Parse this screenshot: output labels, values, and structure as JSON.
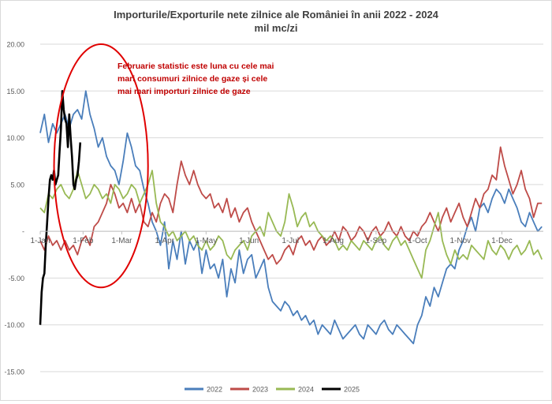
{
  "chart_data": {
    "type": "line",
    "title": "Importurile/Exporturile nete zilnice ale României în anii 2022 - 2024",
    "subtitle": "mil mc/zi",
    "ylim": [
      -15,
      20
    ],
    "y_ticks": [
      {
        "value": 20,
        "label": "20.00"
      },
      {
        "value": 15,
        "label": "15.00"
      },
      {
        "value": 10,
        "label": "10.00"
      },
      {
        "value": 5,
        "label": "5.00"
      },
      {
        "value": 0,
        "label": "-"
      },
      {
        "value": -5,
        "label": "-5.00"
      },
      {
        "value": -10,
        "label": "-10.00"
      },
      {
        "value": -15,
        "label": "-15.00"
      }
    ],
    "xlim": [
      1,
      365
    ],
    "x_ticks": [
      {
        "day": 1,
        "label": "1-Jan"
      },
      {
        "day": 32,
        "label": "1-Feb"
      },
      {
        "day": 60,
        "label": "1-Mar"
      },
      {
        "day": 91,
        "label": "1-Apr"
      },
      {
        "day": 121,
        "label": "1-May"
      },
      {
        "day": 152,
        "label": "1-Jun"
      },
      {
        "day": 182,
        "label": "1-Jul"
      },
      {
        "day": 213,
        "label": "1-Aug"
      },
      {
        "day": 244,
        "label": "1-Sep"
      },
      {
        "day": 274,
        "label": "1-Oct"
      },
      {
        "day": 305,
        "label": "1-Nov"
      },
      {
        "day": 335,
        "label": "1-Dec"
      }
    ],
    "grid": true,
    "legend_position": "bottom",
    "annotation": "Februarie statistic este luna cu cele mai mari consumuri zilnice de gaze și cele mai mari importuri zilnice de gaze",
    "annotation_lines": [
      "Februarie statistic este luna cu cele mai",
      "mari consumuri zilnice de gaze și cele",
      "mai mari importuri zilnice de gaze"
    ],
    "highlight_ellipse": {
      "day_center": 45,
      "value_center": 7,
      "day_radius": 34,
      "value_radius": 13
    },
    "series": [
      {
        "name": "2022",
        "color": "#4a7ebb",
        "x": [
          1,
          4,
          7,
          10,
          13,
          16,
          19,
          22,
          25,
          28,
          31,
          34,
          37,
          40,
          43,
          46,
          49,
          52,
          55,
          58,
          61,
          64,
          67,
          70,
          73,
          76,
          79,
          82,
          85,
          88,
          91,
          94,
          97,
          100,
          103,
          106,
          109,
          112,
          115,
          118,
          121,
          124,
          127,
          130,
          133,
          136,
          139,
          142,
          145,
          148,
          151,
          154,
          157,
          160,
          163,
          166,
          169,
          172,
          175,
          178,
          181,
          184,
          187,
          190,
          193,
          196,
          199,
          202,
          205,
          208,
          211,
          214,
          217,
          220,
          223,
          226,
          229,
          232,
          235,
          238,
          241,
          244,
          247,
          250,
          253,
          256,
          259,
          262,
          265,
          268,
          271,
          274,
          277,
          280,
          283,
          286,
          289,
          292,
          295,
          298,
          301,
          304,
          307,
          310,
          313,
          316,
          319,
          322,
          325,
          328,
          331,
          334,
          337,
          340,
          343,
          346,
          349,
          352,
          355,
          358,
          361,
          364
        ],
        "y": [
          10.5,
          12.5,
          9.5,
          11.5,
          10.5,
          11.5,
          12.5,
          11.0,
          12.5,
          13.0,
          12.0,
          15.0,
          12.5,
          11.0,
          9.0,
          10.0,
          8.0,
          7.0,
          6.5,
          5.0,
          7.5,
          10.5,
          9.0,
          7.0,
          6.5,
          4.5,
          3.0,
          1.0,
          0.0,
          -1.5,
          1.0,
          -4.0,
          -1.0,
          -3.0,
          0.0,
          -3.5,
          -1.0,
          -2.0,
          -1.0,
          -4.5,
          -2.0,
          -4.0,
          -3.5,
          -5.0,
          -3.0,
          -7.0,
          -4.0,
          -5.5,
          -2.0,
          -4.5,
          -3.0,
          -2.5,
          -5.0,
          -4.0,
          -3.0,
          -6.0,
          -7.5,
          -8.0,
          -8.5,
          -7.5,
          -8.0,
          -9.0,
          -8.5,
          -9.5,
          -9.0,
          -10.0,
          -9.5,
          -11.0,
          -10.0,
          -10.5,
          -11.0,
          -9.5,
          -10.5,
          -11.5,
          -11.0,
          -10.5,
          -10.0,
          -11.0,
          -11.5,
          -10.0,
          -10.5,
          -11.0,
          -10.0,
          -9.5,
          -10.5,
          -11.0,
          -10.0,
          -10.5,
          -11.0,
          -11.5,
          -12.0,
          -10.0,
          -9.0,
          -7.0,
          -8.0,
          -6.0,
          -7.0,
          -5.5,
          -4.0,
          -3.5,
          -4.0,
          -2.0,
          -1.0,
          0.5,
          1.5,
          0.0,
          2.5,
          3.0,
          2.0,
          3.5,
          4.5,
          4.0,
          3.0,
          4.5,
          3.5,
          2.5,
          1.0,
          0.5,
          2.0,
          1.0,
          0.0,
          0.5
        ]
      },
      {
        "name": "2023",
        "color": "#be4b48",
        "x": [
          1,
          4,
          7,
          10,
          13,
          16,
          19,
          22,
          25,
          28,
          31,
          34,
          37,
          40,
          43,
          46,
          49,
          52,
          55,
          58,
          61,
          64,
          67,
          70,
          73,
          76,
          79,
          82,
          85,
          88,
          91,
          94,
          97,
          100,
          103,
          106,
          109,
          112,
          115,
          118,
          121,
          124,
          127,
          130,
          133,
          136,
          139,
          142,
          145,
          148,
          151,
          154,
          157,
          160,
          163,
          166,
          169,
          172,
          175,
          178,
          181,
          184,
          187,
          190,
          193,
          196,
          199,
          202,
          205,
          208,
          211,
          214,
          217,
          220,
          223,
          226,
          229,
          232,
          235,
          238,
          241,
          244,
          247,
          250,
          253,
          256,
          259,
          262,
          265,
          268,
          271,
          274,
          277,
          280,
          283,
          286,
          289,
          292,
          295,
          298,
          301,
          304,
          307,
          310,
          313,
          316,
          319,
          322,
          325,
          328,
          331,
          334,
          337,
          340,
          343,
          346,
          349,
          352,
          355,
          358,
          361,
          364
        ],
        "y": [
          -1.0,
          -2.0,
          -0.5,
          -1.5,
          -1.0,
          -2.0,
          -1.0,
          -2.0,
          -1.5,
          -2.5,
          -1.0,
          -0.5,
          -1.5,
          0.5,
          1.0,
          2.0,
          3.0,
          5.0,
          4.0,
          2.5,
          3.0,
          2.0,
          3.5,
          2.0,
          3.0,
          1.0,
          0.5,
          2.0,
          1.0,
          3.0,
          4.0,
          3.5,
          2.0,
          5.0,
          7.5,
          6.0,
          5.0,
          6.5,
          5.0,
          4.0,
          3.5,
          4.0,
          2.5,
          3.0,
          2.0,
          3.5,
          1.5,
          2.5,
          1.0,
          2.0,
          2.5,
          1.0,
          0.0,
          -1.0,
          -2.0,
          -3.0,
          -2.5,
          -3.5,
          -3.0,
          -2.0,
          -1.5,
          -2.5,
          -1.0,
          -0.5,
          -1.5,
          -1.0,
          -2.0,
          -1.0,
          -0.5,
          -1.5,
          -1.0,
          0.0,
          -1.0,
          0.5,
          0.0,
          -1.0,
          -0.5,
          0.5,
          0.0,
          -1.0,
          0.0,
          0.5,
          -0.5,
          0.0,
          1.0,
          0.0,
          -0.5,
          0.5,
          -0.5,
          -1.0,
          0.0,
          -0.5,
          0.5,
          1.0,
          2.0,
          1.0,
          0.0,
          1.5,
          2.5,
          1.0,
          2.0,
          3.0,
          1.5,
          0.5,
          2.0,
          3.5,
          2.5,
          4.0,
          4.5,
          6.0,
          5.5,
          9.0,
          7.0,
          5.5,
          4.0,
          5.0,
          6.5,
          4.5,
          3.5,
          1.5,
          3.0,
          3.0
        ]
      },
      {
        "name": "2024",
        "color": "#98b954",
        "x": [
          1,
          4,
          7,
          10,
          13,
          16,
          19,
          22,
          25,
          28,
          31,
          34,
          37,
          40,
          43,
          46,
          49,
          52,
          55,
          58,
          61,
          64,
          67,
          70,
          73,
          76,
          79,
          82,
          85,
          88,
          91,
          94,
          97,
          100,
          103,
          106,
          109,
          112,
          115,
          118,
          121,
          124,
          127,
          130,
          133,
          136,
          139,
          142,
          145,
          148,
          151,
          154,
          157,
          160,
          163,
          166,
          169,
          172,
          175,
          178,
          181,
          184,
          187,
          190,
          193,
          196,
          199,
          202,
          205,
          208,
          211,
          214,
          217,
          220,
          223,
          226,
          229,
          232,
          235,
          238,
          241,
          244,
          247,
          250,
          253,
          256,
          259,
          262,
          265,
          268,
          271,
          274,
          277,
          280,
          283,
          286,
          289,
          292,
          295,
          298,
          301,
          304,
          307,
          310,
          313,
          316,
          319,
          322,
          325,
          328,
          331,
          334,
          337,
          340,
          343,
          346,
          349,
          352,
          355,
          358,
          361,
          364
        ],
        "y": [
          2.5,
          2.0,
          4.0,
          3.5,
          4.5,
          5.0,
          4.0,
          3.5,
          4.5,
          6.5,
          5.0,
          3.5,
          4.0,
          5.0,
          4.5,
          3.5,
          4.0,
          3.0,
          5.0,
          4.5,
          3.5,
          4.0,
          5.0,
          4.5,
          3.0,
          4.0,
          5.0,
          6.5,
          3.0,
          1.0,
          0.5,
          -0.5,
          0.0,
          -1.0,
          -0.5,
          0.0,
          -1.0,
          -0.5,
          -1.5,
          -2.0,
          -1.0,
          -2.0,
          -1.5,
          -0.5,
          -1.0,
          -2.5,
          -3.0,
          -2.0,
          -1.5,
          -1.0,
          -2.0,
          -0.5,
          0.0,
          0.5,
          -0.5,
          2.0,
          1.0,
          0.0,
          -0.5,
          1.0,
          4.0,
          2.5,
          0.5,
          1.5,
          2.0,
          0.5,
          1.0,
          0.0,
          -0.5,
          -1.0,
          -0.5,
          -1.0,
          -2.0,
          -1.5,
          -2.0,
          -1.0,
          -1.5,
          -2.0,
          -1.0,
          -1.5,
          -2.0,
          -1.0,
          -0.5,
          -1.5,
          -2.0,
          -1.0,
          -0.5,
          -1.5,
          -1.0,
          -2.0,
          -3.0,
          -4.0,
          -5.0,
          -2.0,
          -1.0,
          0.5,
          2.0,
          -1.0,
          -2.5,
          -3.5,
          -2.0,
          -3.0,
          -2.5,
          -3.0,
          -1.5,
          -2.0,
          -2.5,
          -3.0,
          -1.0,
          -2.0,
          -2.5,
          -1.5,
          -2.0,
          -3.0,
          -2.0,
          -1.5,
          -2.5,
          -2.0,
          -1.0,
          -2.5,
          -2.0,
          -3.0
        ]
      },
      {
        "name": "2025",
        "color": "#000000",
        "x": [
          1,
          2,
          3,
          4,
          5,
          6,
          7,
          8,
          9,
          10,
          11,
          12,
          13,
          14,
          15,
          16,
          17,
          18,
          19,
          20,
          21,
          22,
          23,
          24,
          25,
          26,
          27,
          28,
          29,
          30
        ],
        "y": [
          -10.0,
          -6.5,
          -5.0,
          -4.5,
          -1.5,
          1.0,
          3.5,
          5.5,
          6.0,
          5.5,
          6.5,
          5.0,
          5.5,
          6.0,
          8.5,
          11.0,
          15.0,
          13.0,
          12.0,
          11.5,
          9.0,
          12.5,
          10.0,
          8.0,
          5.0,
          4.5,
          5.5,
          6.0,
          7.5,
          9.5
        ]
      }
    ]
  }
}
